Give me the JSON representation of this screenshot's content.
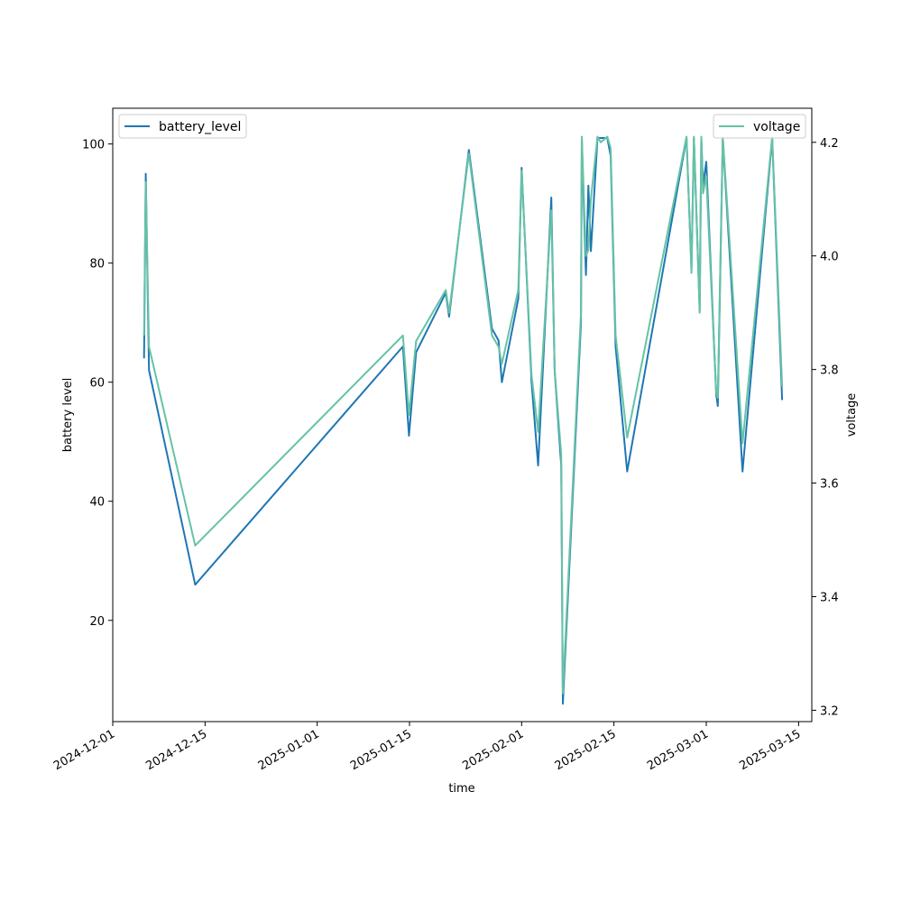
{
  "chart_data": {
    "type": "line",
    "title": "",
    "xlabel": "time",
    "x_axis": {
      "type": "date",
      "range": [
        "2024-12-01",
        "2025-03-17"
      ],
      "ticks": [
        "2024-12-01",
        "2024-12-15",
        "2025-01-01",
        "2025-01-15",
        "2025-02-01",
        "2025-02-15",
        "2025-03-01",
        "2025-03-15"
      ]
    },
    "y_left": {
      "label": "battery level",
      "range": [
        3,
        106
      ],
      "ticks": [
        20,
        40,
        60,
        80,
        100
      ]
    },
    "y_right": {
      "label": "voltage",
      "range": [
        3.18,
        4.26
      ],
      "ticks": [
        "3.2",
        "3.4",
        "3.6",
        "3.8",
        "4.0",
        "4.2"
      ]
    },
    "grid": false,
    "legends": [
      {
        "placement": "top-left",
        "entries": [
          "battery_level"
        ]
      },
      {
        "placement": "top-right",
        "entries": [
          "voltage"
        ]
      }
    ],
    "colors": {
      "battery_level": "#1f77b4",
      "voltage": "#66c2a5"
    },
    "series": [
      {
        "name": "battery_level",
        "axis": "left",
        "points": [
          [
            "2024-12-05T18:00",
            64
          ],
          [
            "2024-12-06T00:00",
            95
          ],
          [
            "2024-12-06T12:00",
            62
          ],
          [
            "2024-12-13T12:00",
            26
          ],
          [
            "2025-01-14T00:00",
            66
          ],
          [
            "2025-01-14T22:00",
            51
          ],
          [
            "2025-01-16T00:00",
            65
          ],
          [
            "2025-01-20T12:00",
            75
          ],
          [
            "2025-01-21T00:00",
            71
          ],
          [
            "2025-01-24T00:00",
            99
          ],
          [
            "2025-01-27T12:00",
            69
          ],
          [
            "2025-01-28T12:00",
            67
          ],
          [
            "2025-01-29T00:00",
            60
          ],
          [
            "2025-01-31T12:00",
            74
          ],
          [
            "2025-02-01T00:00",
            96
          ],
          [
            "2025-02-02T12:00",
            60
          ],
          [
            "2025-02-03T12:00",
            46
          ],
          [
            "2025-02-05T12:00",
            91
          ],
          [
            "2025-02-06T00:00",
            62
          ],
          [
            "2025-02-07T00:00",
            46
          ],
          [
            "2025-02-07T06:00",
            6
          ],
          [
            "2025-02-10T00:00",
            70
          ],
          [
            "2025-02-10T03:00",
            101
          ],
          [
            "2025-02-10T18:00",
            78
          ],
          [
            "2025-02-11T03:00",
            93
          ],
          [
            "2025-02-11T12:00",
            82
          ],
          [
            "2025-02-12T12:00",
            101
          ],
          [
            "2025-02-13T00:00",
            101
          ],
          [
            "2025-02-14T00:00",
            101
          ],
          [
            "2025-02-14T12:00",
            98
          ],
          [
            "2025-02-15T06:00",
            66
          ],
          [
            "2025-02-17T00:00",
            45
          ],
          [
            "2025-02-26T00:00",
            101
          ],
          [
            "2025-02-26T18:00",
            79
          ],
          [
            "2025-02-27T03:00",
            101
          ],
          [
            "2025-02-28T00:00",
            72
          ],
          [
            "2025-02-28T06:00",
            101
          ],
          [
            "2025-02-28T12:00",
            93
          ],
          [
            "2025-03-01T00:00",
            97
          ],
          [
            "2025-03-02T12:00",
            58
          ],
          [
            "2025-03-02T18:00",
            56
          ],
          [
            "2025-03-03T12:00",
            101
          ],
          [
            "2025-03-06T12:00",
            45
          ],
          [
            "2025-03-11T00:00",
            101
          ],
          [
            "2025-03-12T12:00",
            57
          ]
        ]
      },
      {
        "name": "voltage",
        "axis": "right",
        "points": [
          [
            "2024-12-05T18:00",
            3.86
          ],
          [
            "2024-12-06T00:00",
            4.13
          ],
          [
            "2024-12-06T12:00",
            3.84
          ],
          [
            "2024-12-13T12:00",
            3.49
          ],
          [
            "2025-01-14T00:00",
            3.86
          ],
          [
            "2025-01-14T22:00",
            3.72
          ],
          [
            "2025-01-16T00:00",
            3.85
          ],
          [
            "2025-01-20T12:00",
            3.94
          ],
          [
            "2025-01-21T00:00",
            3.9
          ],
          [
            "2025-01-24T00:00",
            4.18
          ],
          [
            "2025-01-27T12:00",
            3.86
          ],
          [
            "2025-01-28T12:00",
            3.84
          ],
          [
            "2025-01-29T00:00",
            3.81
          ],
          [
            "2025-01-31T12:00",
            3.94
          ],
          [
            "2025-02-01T00:00",
            4.15
          ],
          [
            "2025-02-02T12:00",
            3.79
          ],
          [
            "2025-02-03T12:00",
            3.69
          ],
          [
            "2025-02-05T12:00",
            4.08
          ],
          [
            "2025-02-06T00:00",
            3.8
          ],
          [
            "2025-02-07T00:00",
            3.65
          ],
          [
            "2025-02-07T06:00",
            3.23
          ],
          [
            "2025-02-10T00:00",
            3.9
          ],
          [
            "2025-02-10T03:00",
            4.21
          ],
          [
            "2025-02-10T18:00",
            4.0
          ],
          [
            "2025-02-11T03:00",
            4.01
          ],
          [
            "2025-02-11T12:00",
            4.1
          ],
          [
            "2025-02-12T12:00",
            4.21
          ],
          [
            "2025-02-13T00:00",
            4.2
          ],
          [
            "2025-02-14T00:00",
            4.21
          ],
          [
            "2025-02-14T12:00",
            4.19
          ],
          [
            "2025-02-15T06:00",
            3.86
          ],
          [
            "2025-02-17T00:00",
            3.68
          ],
          [
            "2025-02-26T00:00",
            4.21
          ],
          [
            "2025-02-26T18:00",
            3.97
          ],
          [
            "2025-02-27T03:00",
            4.21
          ],
          [
            "2025-02-28T00:00",
            3.9
          ],
          [
            "2025-02-28T06:00",
            4.21
          ],
          [
            "2025-02-28T12:00",
            4.11
          ],
          [
            "2025-03-01T00:00",
            4.14
          ],
          [
            "2025-03-02T12:00",
            3.76
          ],
          [
            "2025-03-02T18:00",
            3.75
          ],
          [
            "2025-03-03T12:00",
            4.21
          ],
          [
            "2025-03-06T12:00",
            3.67
          ],
          [
            "2025-03-11T00:00",
            4.21
          ],
          [
            "2025-03-12T12:00",
            3.77
          ]
        ]
      }
    ]
  }
}
